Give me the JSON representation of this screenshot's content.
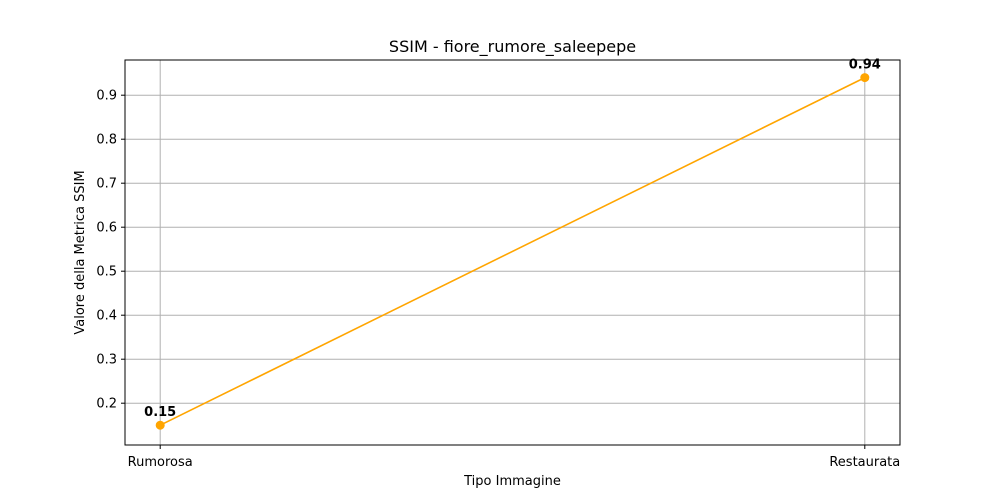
{
  "chart_data": {
    "type": "line",
    "title": "SSIM - fiore_rumore_saleepepe",
    "xlabel": "Tipo Immagine",
    "ylabel": "Valore della Metrica SSIM",
    "categories": [
      "Rumorosa",
      "Restaurata"
    ],
    "series": [
      {
        "values": [
          0.15,
          0.94
        ],
        "color": "#ffa500",
        "marker": "circle"
      }
    ],
    "data_labels": [
      "0.15",
      "0.94"
    ],
    "ylim": [
      0.105,
      0.98
    ],
    "yticks": [
      0.2,
      0.3,
      0.4,
      0.5,
      0.6,
      0.7,
      0.8,
      0.9
    ],
    "ytick_labels": [
      "0.2",
      "0.3",
      "0.4",
      "0.5",
      "0.6",
      "0.7",
      "0.8",
      "0.9"
    ],
    "grid": true,
    "legend": "none"
  }
}
